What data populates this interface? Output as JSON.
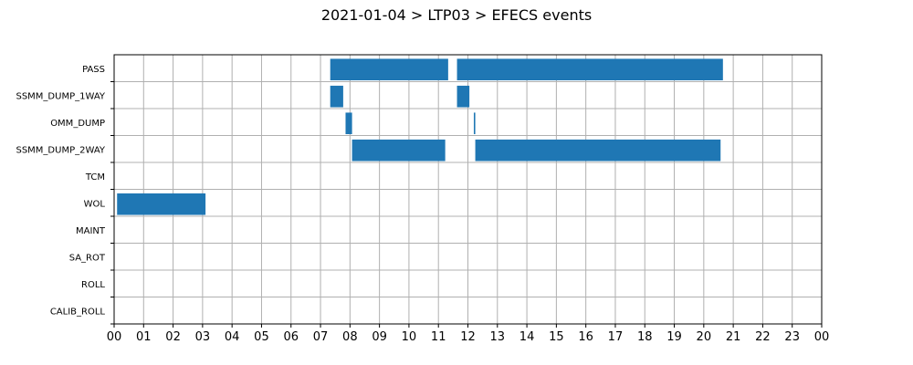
{
  "chart_data": {
    "type": "bar",
    "orientation": "horizontal-timeline",
    "title": "2021-01-04 > LTP03 > EFECS events",
    "xlabel": "",
    "ylabel": "",
    "categories": [
      "PASS",
      "SSMM_DUMP_1WAY",
      "OMM_DUMP",
      "SSMM_DUMP_2WAY",
      "TCM",
      "WOL",
      "MAINT",
      "SA_ROT",
      "ROLL",
      "CALIB_ROLL"
    ],
    "x_tick_labels": [
      "00",
      "01",
      "02",
      "03",
      "04",
      "05",
      "06",
      "07",
      "08",
      "09",
      "10",
      "11",
      "12",
      "13",
      "14",
      "15",
      "16",
      "17",
      "18",
      "19",
      "20",
      "21",
      "22",
      "23",
      "00"
    ],
    "xlim_hours": [
      0,
      24
    ],
    "grid": true,
    "bar_color": "#1f77b4",
    "events": [
      {
        "category": "PASS",
        "start_hour": 7.33,
        "end_hour": 11.33
      },
      {
        "category": "PASS",
        "start_hour": 11.63,
        "end_hour": 20.65
      },
      {
        "category": "SSMM_DUMP_1WAY",
        "start_hour": 7.33,
        "end_hour": 7.77
      },
      {
        "category": "SSMM_DUMP_1WAY",
        "start_hour": 11.63,
        "end_hour": 12.05
      },
      {
        "category": "OMM_DUMP",
        "start_hour": 7.85,
        "end_hour": 8.07
      },
      {
        "category": "OMM_DUMP",
        "start_hour": 12.2,
        "end_hour": 12.25
      },
      {
        "category": "SSMM_DUMP_2WAY",
        "start_hour": 8.07,
        "end_hour": 11.23
      },
      {
        "category": "SSMM_DUMP_2WAY",
        "start_hour": 12.25,
        "end_hour": 20.57
      },
      {
        "category": "WOL",
        "start_hour": 0.1,
        "end_hour": 3.1
      }
    ]
  }
}
